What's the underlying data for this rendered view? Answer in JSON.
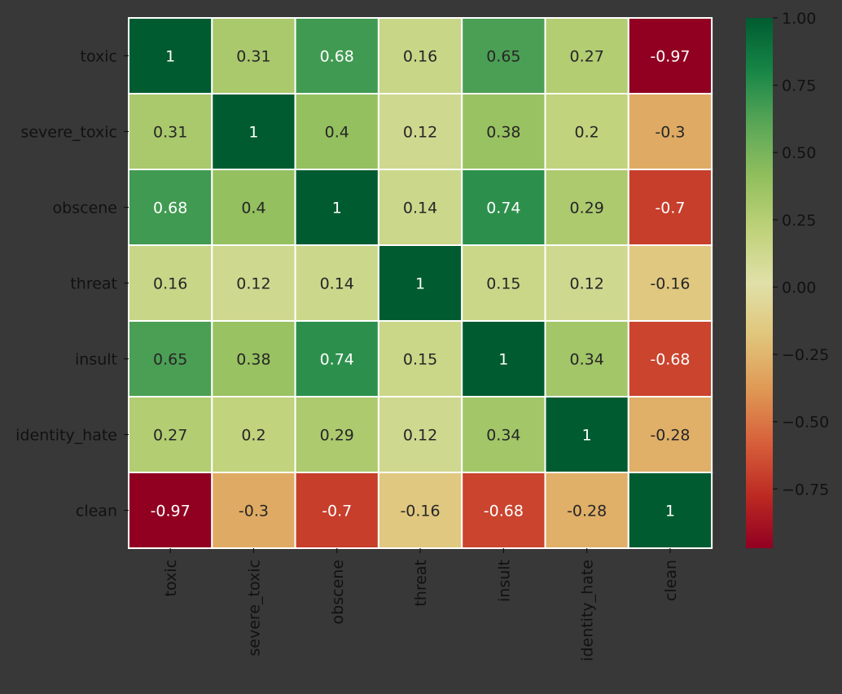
{
  "chart_data": {
    "type": "heatmap",
    "title": "",
    "xlabel": "",
    "ylabel": "",
    "rows": [
      "toxic",
      "severe_toxic",
      "obscene",
      "threat",
      "insult",
      "identity_hate",
      "clean"
    ],
    "cols": [
      "toxic",
      "severe_toxic",
      "obscene",
      "threat",
      "insult",
      "identity_hate",
      "clean"
    ],
    "values": [
      [
        1,
        0.31,
        0.68,
        0.16,
        0.65,
        0.27,
        -0.97
      ],
      [
        0.31,
        1,
        0.4,
        0.12,
        0.38,
        0.2,
        -0.3
      ],
      [
        0.68,
        0.4,
        1,
        0.14,
        0.74,
        0.29,
        -0.7
      ],
      [
        0.16,
        0.12,
        0.14,
        1,
        0.15,
        0.12,
        -0.16
      ],
      [
        0.65,
        0.38,
        0.74,
        0.15,
        1,
        0.34,
        -0.68
      ],
      [
        0.27,
        0.2,
        0.29,
        0.12,
        0.34,
        1,
        -0.28
      ],
      [
        -0.97,
        -0.3,
        -0.7,
        -0.16,
        -0.68,
        -0.28,
        1
      ]
    ],
    "annotations": [
      [
        "1",
        "0.31",
        "0.68",
        "0.16",
        "0.65",
        "0.27",
        "-0.97"
      ],
      [
        "0.31",
        "1",
        "0.4",
        "0.12",
        "0.38",
        "0.2",
        "-0.3"
      ],
      [
        "0.68",
        "0.4",
        "1",
        "0.14",
        "0.74",
        "0.29",
        "-0.7"
      ],
      [
        "0.16",
        "0.12",
        "0.14",
        "1",
        "0.15",
        "0.12",
        "-0.16"
      ],
      [
        "0.65",
        "0.38",
        "0.74",
        "0.15",
        "1",
        "0.34",
        "-0.68"
      ],
      [
        "0.27",
        "0.2",
        "0.29",
        "0.12",
        "0.34",
        "1",
        "-0.28"
      ],
      [
        "-0.97",
        "-0.3",
        "-0.7",
        "-0.16",
        "-0.68",
        "-0.28",
        "1"
      ]
    ],
    "colormap": "RdYlGn",
    "color_range": [
      -0.97,
      1
    ],
    "colorbar": {
      "ticks": [
        -0.75,
        -0.5,
        -0.25,
        0,
        0.25,
        0.5,
        0.75,
        1
      ],
      "tick_labels": [
        "−0.75",
        "−0.50",
        "−0.25",
        "0.00",
        "0.25",
        "0.50",
        "0.75",
        "1.00"
      ],
      "position": "right"
    },
    "grid_lines": true,
    "colors": {
      "background": "#383838",
      "grid": "#ffffff",
      "text_dark": "#262626",
      "text_light": "#ffffff"
    }
  }
}
